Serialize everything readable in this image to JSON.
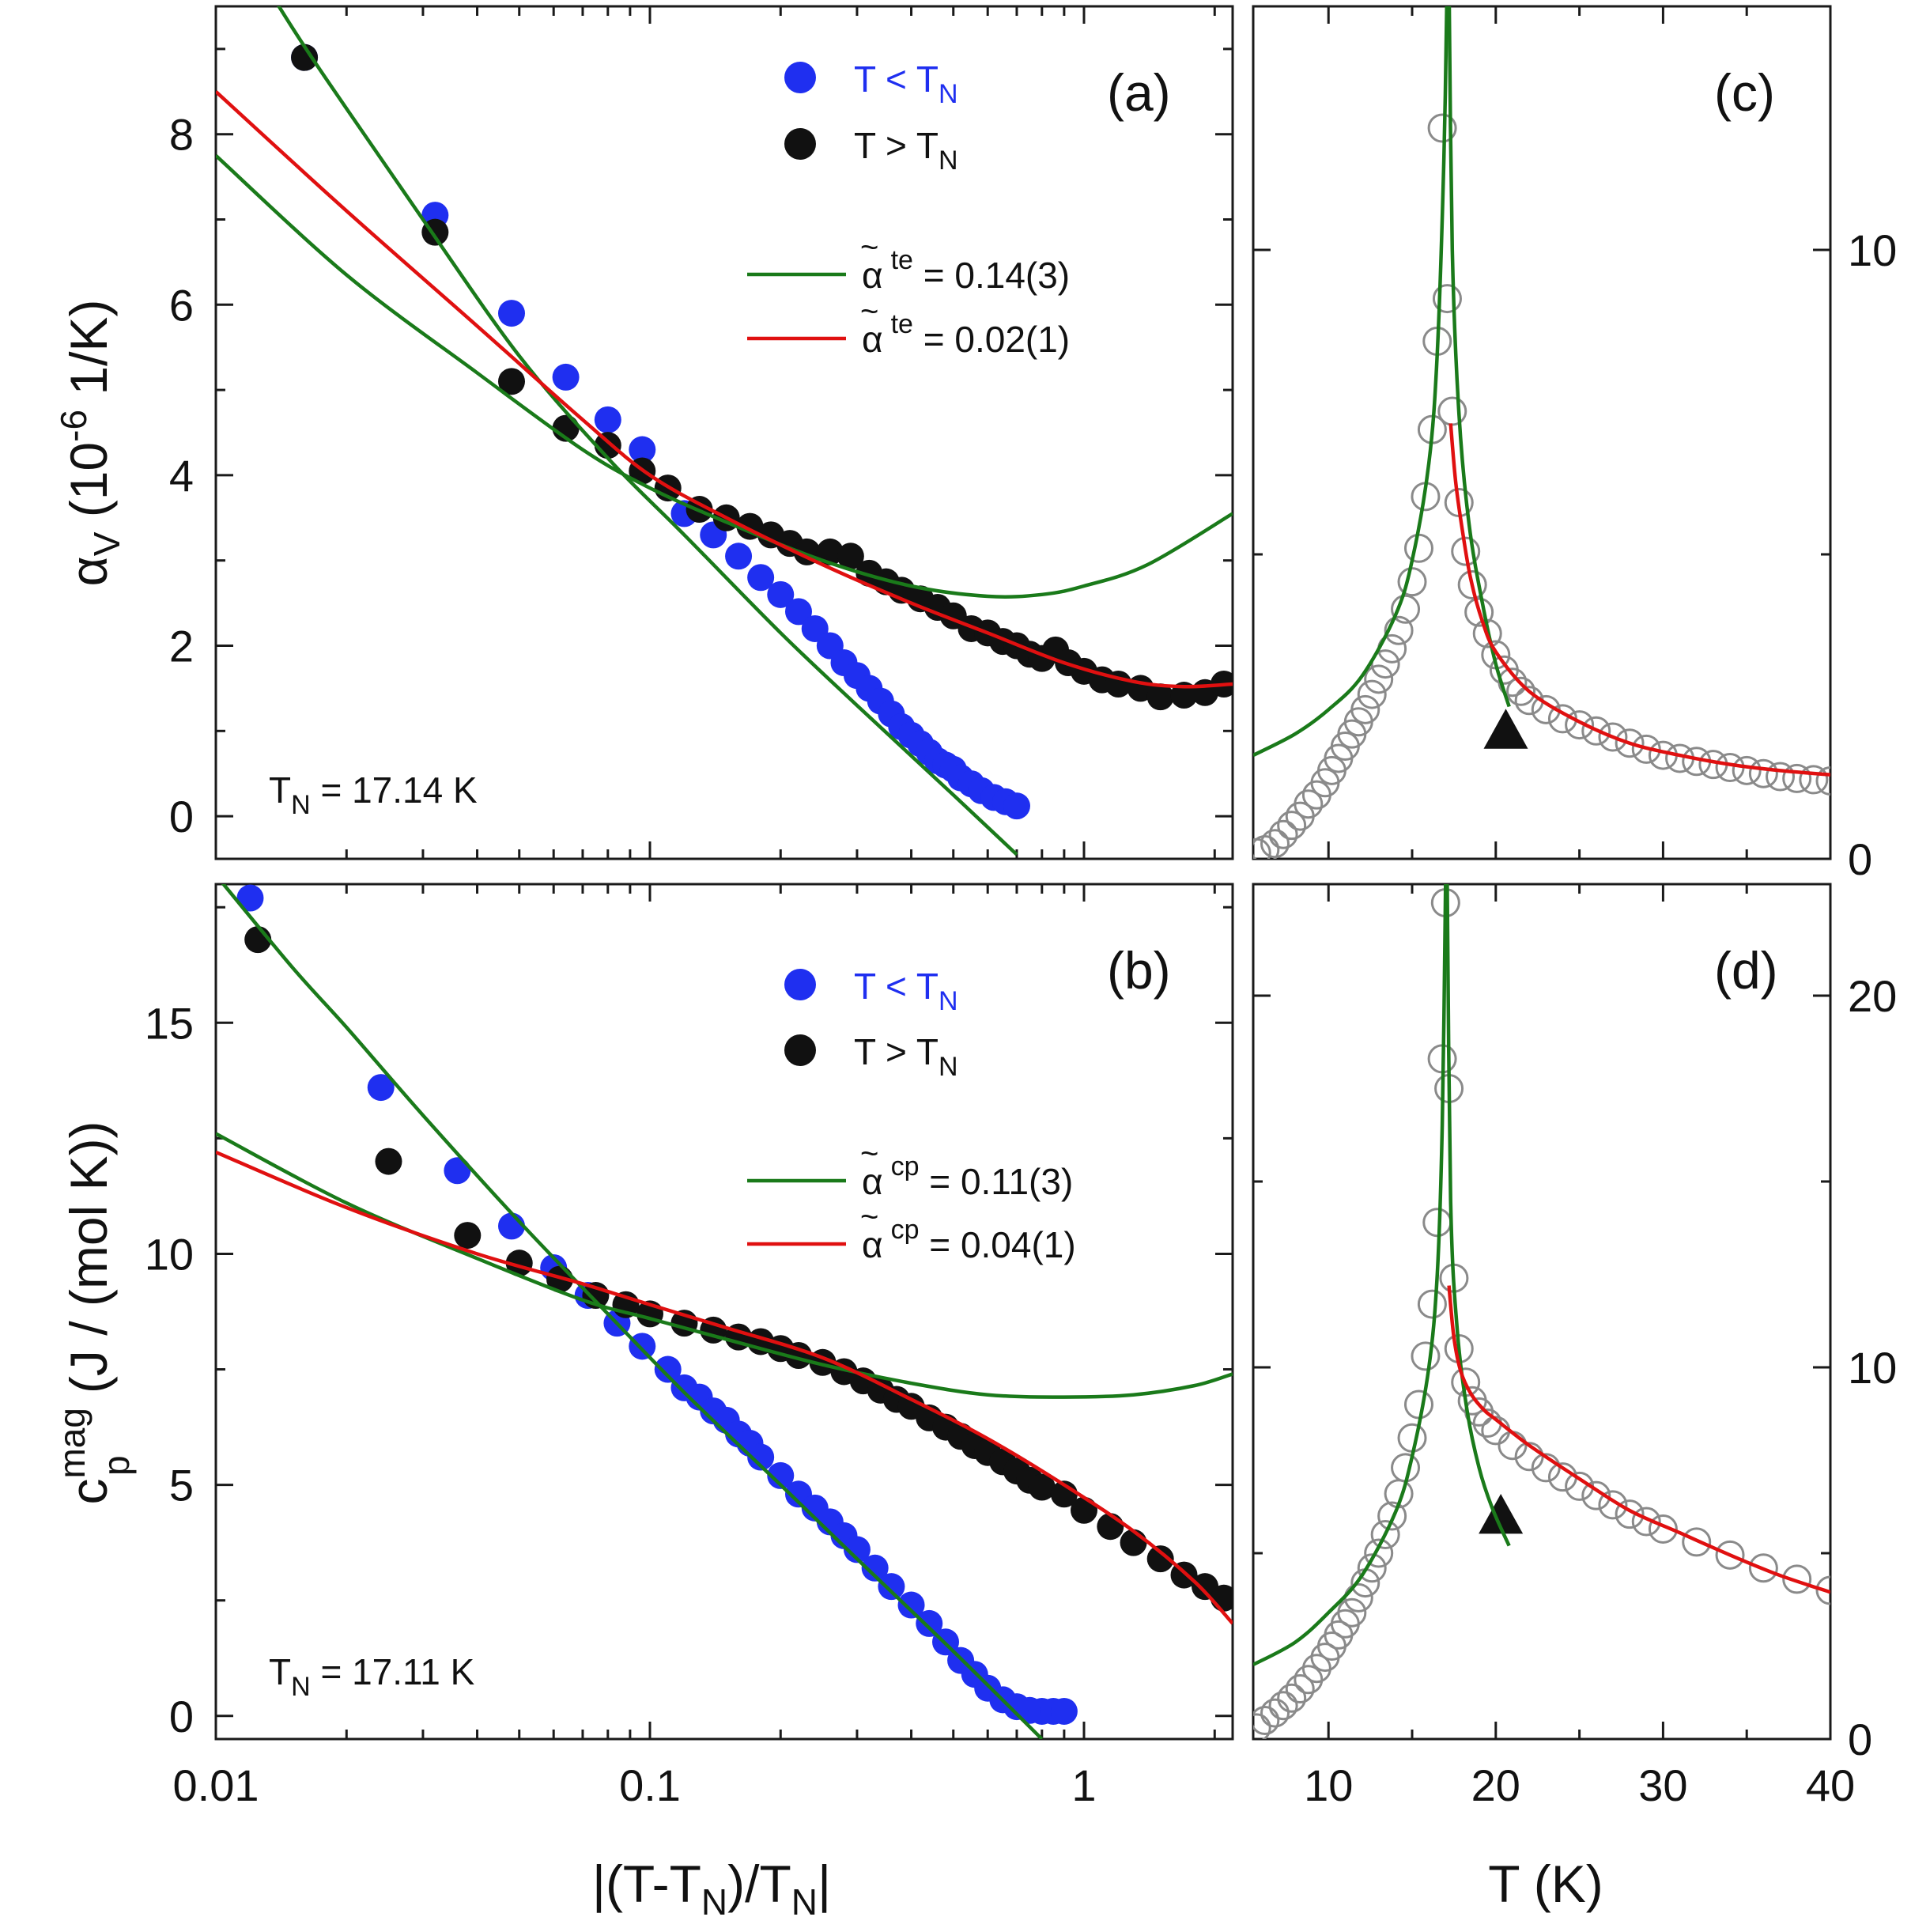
{
  "colors": {
    "blue": "#1f2ff0",
    "black": "#111111",
    "green": "#1a7a1a",
    "red": "#e01010",
    "gray": "#8a8a8a"
  },
  "labels": {
    "panel_a": "(a)",
    "panel_b": "(b)",
    "panel_c": "(c)",
    "panel_d": "(d)",
    "tn_a": "T",
    "tn_a_sub": "N",
    "tn_a_val": " = 17.14 K",
    "tn_b": "T",
    "tn_b_sub": "N",
    "tn_b_val": " = 17.11 K",
    "leg_below": "T < T",
    "leg_below_sub": "N",
    "leg_above": "T > T",
    "leg_above_sub": "N",
    "fit_alpha_symbol": "α",
    "fit_tilde": "~",
    "fit_te_sup": "te",
    "fit_cp_sup": "cp",
    "fit_a_green": " = 0.14(3)",
    "fit_a_red": " = 0.02(1)",
    "fit_b_green": " = 0.11(3)",
    "fit_b_red": " = 0.04(1)",
    "ylabel_a_main": "α",
    "ylabel_a_sub": "V",
    "ylabel_a_rest1": " (10",
    "ylabel_a_exp": "-6",
    "ylabel_a_rest2": " 1/K)",
    "ylabel_b_main": "c",
    "ylabel_b_sup": "mag",
    "ylabel_b_sub": "p",
    "ylabel_b_rest": " (J / (mol K))",
    "xlabel_left_1": "|(T-T",
    "xlabel_left_sub1": "N",
    "xlabel_left_2": ")/T",
    "xlabel_left_sub2": "N",
    "xlabel_left_3": "|",
    "xlabel_right": "T (K)"
  },
  "chart_data": [
    {
      "id": "a",
      "type": "scatter",
      "xscale": "log",
      "xlim": [
        0.01,
        2.2
      ],
      "ylim": [
        -0.5,
        9.5
      ],
      "xticks": [
        "0.01",
        "0.1",
        "1"
      ],
      "yticks": [
        "0",
        "2",
        "4",
        "6",
        "8"
      ],
      "ytick_values": [
        0,
        2,
        4,
        6,
        8
      ],
      "ylabel": "αV (10^-6 1/K)",
      "tn_label": "TN = 17.14 K",
      "legend": [
        "T < TN",
        "T > TN",
        "α~te = 0.14(3)",
        "α~te = 0.02(1)"
      ],
      "series": [
        {
          "name": "T < TN",
          "color": "blue",
          "x": [
            0.016,
            0.032,
            0.048,
            0.064,
            0.08,
            0.096,
            0.12,
            0.14,
            0.16,
            0.18,
            0.2,
            0.22,
            0.24,
            0.26,
            0.28,
            0.3,
            0.32,
            0.34,
            0.36,
            0.38,
            0.4,
            0.42,
            0.44,
            0.46,
            0.48,
            0.5,
            0.52,
            0.55,
            0.58,
            0.62,
            0.66,
            0.7
          ],
          "y": [
            8.9,
            7.05,
            5.9,
            5.15,
            4.65,
            4.3,
            3.55,
            3.3,
            3.05,
            2.8,
            2.6,
            2.4,
            2.2,
            2.0,
            1.8,
            1.65,
            1.5,
            1.35,
            1.2,
            1.05,
            0.95,
            0.85,
            0.75,
            0.65,
            0.6,
            0.55,
            0.45,
            0.38,
            0.3,
            0.22,
            0.17,
            0.12
          ]
        },
        {
          "name": "T > TN",
          "color": "black",
          "x": [
            0.016,
            0.032,
            0.048,
            0.064,
            0.08,
            0.096,
            0.11,
            0.13,
            0.15,
            0.17,
            0.19,
            0.21,
            0.23,
            0.26,
            0.29,
            0.32,
            0.35,
            0.38,
            0.42,
            0.46,
            0.5,
            0.55,
            0.6,
            0.65,
            0.7,
            0.75,
            0.8,
            0.86,
            0.92,
            1.0,
            1.1,
            1.2,
            1.35,
            1.5,
            1.7,
            1.9,
            2.1
          ],
          "y": [
            8.9,
            6.85,
            5.1,
            4.55,
            4.35,
            4.05,
            3.85,
            3.6,
            3.5,
            3.4,
            3.3,
            3.2,
            3.1,
            3.1,
            3.05,
            2.85,
            2.75,
            2.65,
            2.55,
            2.45,
            2.35,
            2.2,
            2.15,
            2.05,
            2.0,
            1.9,
            1.85,
            1.95,
            1.8,
            1.7,
            1.6,
            1.55,
            1.5,
            1.4,
            1.42,
            1.45,
            1.55
          ]
        },
        {
          "name": "α~te = 0.14(3)",
          "color": "green",
          "kind": "line",
          "x": [
            0.01,
            0.015,
            0.02,
            0.03,
            0.05,
            0.08,
            0.12,
            0.2,
            0.3,
            0.5,
            0.7
          ],
          "y": [
            10.7,
            9.25,
            8.3,
            7.0,
            5.4,
            4.2,
            3.3,
            2.15,
            1.3,
            0.25,
            -0.45
          ]
        },
        {
          "name": "α~te = 0.14(3)",
          "color": "green",
          "kind": "line",
          "x": [
            0.01,
            0.02,
            0.04,
            0.07,
            0.1,
            0.15,
            0.25,
            0.4,
            0.6,
            0.8,
            1.0,
            1.4,
            2.2
          ],
          "y": [
            7.75,
            6.35,
            5.2,
            4.3,
            3.85,
            3.45,
            3.0,
            2.7,
            2.58,
            2.6,
            2.7,
            2.95,
            3.55
          ]
        },
        {
          "name": "α~te = 0.02(1)",
          "color": "red",
          "kind": "line",
          "x": [
            0.01,
            0.02,
            0.04,
            0.07,
            0.1,
            0.15,
            0.25,
            0.4,
            0.6,
            0.9,
            1.3,
            1.7,
            2.2
          ],
          "y": [
            8.5,
            7.1,
            5.75,
            4.65,
            4.0,
            3.5,
            2.95,
            2.5,
            2.15,
            1.8,
            1.58,
            1.52,
            1.55
          ]
        }
      ]
    },
    {
      "id": "b",
      "type": "scatter",
      "xscale": "log",
      "xlim": [
        0.01,
        2.2
      ],
      "ylim": [
        -0.5,
        18
      ],
      "xticks": [
        "0.01",
        "0.1",
        "1"
      ],
      "yticks": [
        "0",
        "5",
        "10",
        "15"
      ],
      "ytick_values": [
        0,
        5,
        10,
        15
      ],
      "xlabel": "|(T-TN)/TN|",
      "ylabel": "cp^mag (J / (mol K))",
      "tn_label": "TN = 17.11 K",
      "legend": [
        "T < TN",
        "T > TN",
        "α~cp = 0.11(3)",
        "α~cp = 0.04(1)"
      ],
      "series": [
        {
          "name": "T < TN",
          "color": "blue",
          "x": [
            0.012,
            0.024,
            0.036,
            0.048,
            0.06,
            0.072,
            0.084,
            0.096,
            0.11,
            0.12,
            0.13,
            0.14,
            0.15,
            0.16,
            0.17,
            0.18,
            0.2,
            0.22,
            0.24,
            0.26,
            0.28,
            0.3,
            0.33,
            0.36,
            0.4,
            0.44,
            0.48,
            0.52,
            0.56,
            0.6,
            0.65,
            0.7,
            0.75,
            0.8,
            0.85,
            0.9
          ],
          "y": [
            17.7,
            13.6,
            11.8,
            10.6,
            9.7,
            9.1,
            8.5,
            8.0,
            7.5,
            7.1,
            6.9,
            6.6,
            6.4,
            6.1,
            5.9,
            5.6,
            5.2,
            4.8,
            4.5,
            4.2,
            3.9,
            3.6,
            3.2,
            2.8,
            2.4,
            2.0,
            1.6,
            1.2,
            0.9,
            0.6,
            0.35,
            0.2,
            0.12,
            0.1,
            0.1,
            0.1
          ]
        },
        {
          "name": "T > TN",
          "color": "black",
          "x": [
            0.0125,
            0.025,
            0.038,
            0.05,
            0.062,
            0.075,
            0.088,
            0.1,
            0.12,
            0.14,
            0.16,
            0.18,
            0.2,
            0.22,
            0.25,
            0.28,
            0.31,
            0.34,
            0.37,
            0.4,
            0.44,
            0.48,
            0.52,
            0.56,
            0.6,
            0.65,
            0.7,
            0.75,
            0.8,
            0.9,
            1.0,
            1.15,
            1.3,
            1.5,
            1.7,
            1.9,
            2.1
          ],
          "y": [
            16.8,
            12.0,
            10.4,
            9.8,
            9.45,
            9.1,
            8.9,
            8.7,
            8.5,
            8.35,
            8.2,
            8.1,
            7.95,
            7.8,
            7.65,
            7.45,
            7.25,
            7.05,
            6.85,
            6.7,
            6.45,
            6.25,
            6.05,
            5.85,
            5.7,
            5.5,
            5.3,
            5.1,
            4.95,
            4.8,
            4.45,
            4.1,
            3.75,
            3.4,
            3.05,
            2.8,
            2.55
          ]
        },
        {
          "name": "α~cp = 0.11(3)",
          "color": "green",
          "kind": "line",
          "x": [
            0.01,
            0.015,
            0.02,
            0.03,
            0.05,
            0.08,
            0.12,
            0.2,
            0.3,
            0.5,
            0.8
          ],
          "y": [
            18.2,
            16.2,
            14.9,
            13.0,
            10.7,
            8.7,
            7.0,
            5.0,
            3.4,
            1.4,
            -0.5
          ]
        },
        {
          "name": "α~cp = 0.11(3)",
          "color": "green",
          "kind": "line",
          "x": [
            0.01,
            0.02,
            0.04,
            0.07,
            0.1,
            0.15,
            0.25,
            0.4,
            0.6,
            0.9,
            1.3,
            1.8,
            2.2
          ],
          "y": [
            12.6,
            11.1,
            9.9,
            9.0,
            8.6,
            8.15,
            7.6,
            7.2,
            6.95,
            6.9,
            6.95,
            7.15,
            7.4
          ]
        },
        {
          "name": "α~cp = 0.04(1)",
          "color": "red",
          "kind": "line",
          "x": [
            0.01,
            0.02,
            0.04,
            0.07,
            0.1,
            0.15,
            0.25,
            0.4,
            0.6,
            0.9,
            1.3,
            1.8,
            2.2
          ],
          "y": [
            12.2,
            11.0,
            10.0,
            9.35,
            8.9,
            8.4,
            7.75,
            6.85,
            6.0,
            5.0,
            4.0,
            2.9,
            2.0
          ]
        }
      ]
    },
    {
      "id": "c",
      "type": "scatter",
      "xlim": [
        5.5,
        40
      ],
      "ylim": [
        0,
        14
      ],
      "xticks": [],
      "yticks": [
        "0",
        "10"
      ],
      "ytick_values": [
        0,
        10
      ],
      "series": [
        {
          "name": "data",
          "color": "gray",
          "marker": "open-circle",
          "x": [
            5.7,
            6.2,
            6.8,
            7.3,
            7.8,
            8.3,
            8.8,
            9.3,
            9.8,
            10.2,
            10.6,
            11.0,
            11.4,
            11.8,
            12.2,
            12.6,
            13.0,
            13.4,
            13.8,
            14.2,
            14.6,
            15.0,
            15.4,
            15.8,
            16.2,
            16.5,
            16.8,
            17.1,
            17.4,
            17.8,
            18.2,
            18.6,
            19.0,
            19.5,
            20.0,
            20.5,
            21.0,
            21.5,
            22.0,
            23,
            24,
            25,
            26,
            27,
            28,
            29,
            30,
            31,
            32,
            33,
            34,
            35,
            36,
            37,
            38,
            39,
            40
          ],
          "y": [
            0.1,
            0.15,
            0.25,
            0.4,
            0.55,
            0.7,
            0.9,
            1.05,
            1.25,
            1.45,
            1.65,
            1.85,
            2.05,
            2.25,
            2.45,
            2.7,
            2.95,
            3.2,
            3.45,
            3.75,
            4.1,
            4.55,
            5.1,
            5.95,
            7.05,
            8.5,
            12.0,
            9.2,
            7.35,
            5.85,
            5.05,
            4.5,
            4.05,
            3.7,
            3.35,
            3.1,
            2.9,
            2.75,
            2.6,
            2.45,
            2.3,
            2.2,
            2.1,
            2.0,
            1.9,
            1.8,
            1.7,
            1.65,
            1.6,
            1.55,
            1.5,
            1.45,
            1.4,
            1.35,
            1.32,
            1.3,
            1.28
          ]
        },
        {
          "name": "green fit",
          "color": "green",
          "kind": "line",
          "x": [
            5.5,
            8,
            10,
            12,
            14,
            15,
            16,
            16.5,
            16.9,
            17.1
          ],
          "y": [
            1.7,
            2.05,
            2.45,
            3.0,
            4.0,
            4.9,
            6.5,
            8.3,
            11.5,
            14.5
          ]
        },
        {
          "name": "green fit",
          "color": "green",
          "kind": "line",
          "x": [
            17.2,
            17.4,
            17.8,
            18.4,
            19.2,
            20.0,
            20.8
          ],
          "y": [
            14.5,
            10.0,
            7.3,
            5.5,
            4.2,
            3.2,
            2.5
          ]
        },
        {
          "name": "red fit",
          "color": "red",
          "kind": "line",
          "x": [
            17.3,
            17.6,
            18.0,
            18.5,
            19.2,
            20,
            22,
            25,
            28,
            31,
            34,
            37,
            40
          ],
          "y": [
            7.15,
            6.2,
            5.4,
            4.6,
            3.9,
            3.4,
            2.75,
            2.25,
            1.9,
            1.7,
            1.55,
            1.45,
            1.38
          ]
        },
        {
          "name": "marker",
          "color": "black",
          "marker": "triangle",
          "x": [
            20.6
          ],
          "y": [
            2.1
          ]
        }
      ]
    },
    {
      "id": "d",
      "type": "scatter",
      "xlim": [
        5.5,
        40
      ],
      "ylim": [
        0,
        23
      ],
      "xticks": [
        "10",
        "20",
        "30",
        "40"
      ],
      "yticks": [
        "0",
        "10",
        "20"
      ],
      "ytick_values": [
        0,
        10,
        20
      ],
      "xlabel": "T (K)",
      "series": [
        {
          "name": "data",
          "color": "gray",
          "marker": "open-circle",
          "x": [
            5.7,
            6.2,
            6.8,
            7.3,
            7.8,
            8.3,
            8.8,
            9.3,
            9.8,
            10.2,
            10.6,
            11.0,
            11.4,
            11.8,
            12.2,
            12.6,
            13.0,
            13.4,
            13.8,
            14.2,
            14.6,
            15.0,
            15.4,
            15.8,
            16.2,
            16.5,
            16.8,
            17.0,
            17.2,
            17.5,
            17.8,
            18.2,
            18.6,
            19.0,
            19.5,
            20.0,
            21,
            22,
            23,
            24,
            25,
            26,
            27,
            28,
            29,
            30,
            32,
            34,
            36,
            38,
            40
          ],
          "y": [
            0.3,
            0.5,
            0.7,
            0.9,
            1.1,
            1.35,
            1.6,
            1.9,
            2.2,
            2.5,
            2.8,
            3.1,
            3.4,
            3.8,
            4.2,
            4.6,
            5.0,
            5.5,
            6.0,
            6.6,
            7.3,
            8.1,
            9.0,
            10.3,
            11.7,
            13.9,
            18.3,
            22.5,
            17.5,
            12.4,
            10.5,
            9.6,
            9.1,
            8.8,
            8.5,
            8.3,
            7.9,
            7.6,
            7.3,
            7.05,
            6.8,
            6.55,
            6.3,
            6.05,
            5.85,
            5.65,
            5.3,
            4.95,
            4.6,
            4.3,
            4.0
          ]
        },
        {
          "name": "green fit",
          "color": "green",
          "kind": "line",
          "x": [
            5.5,
            8,
            10,
            12,
            14,
            15,
            16,
            16.5,
            16.8,
            17.0
          ],
          "y": [
            2.0,
            2.6,
            3.4,
            4.4,
            6.1,
            7.6,
            10.0,
            12.5,
            16.5,
            23
          ]
        },
        {
          "name": "green fit",
          "color": "green",
          "kind": "line",
          "x": [
            17.1,
            17.3,
            17.7,
            18.3,
            19.0,
            19.8,
            20.8
          ],
          "y": [
            23,
            14.5,
            11.0,
            8.8,
            7.3,
            6.2,
            5.2
          ]
        },
        {
          "name": "red fit",
          "color": "red",
          "kind": "line",
          "x": [
            17.2,
            17.5,
            17.9,
            18.5,
            19.3,
            20.0,
            22,
            25,
            28,
            31,
            34,
            37,
            40
          ],
          "y": [
            12.2,
            10.8,
            9.9,
            9.3,
            8.85,
            8.6,
            7.9,
            7.0,
            6.15,
            5.55,
            4.95,
            4.4,
            3.95
          ]
        },
        {
          "name": "marker",
          "color": "black",
          "marker": "triangle",
          "x": [
            20.3
          ],
          "y": [
            6.0
          ]
        }
      ]
    }
  ]
}
